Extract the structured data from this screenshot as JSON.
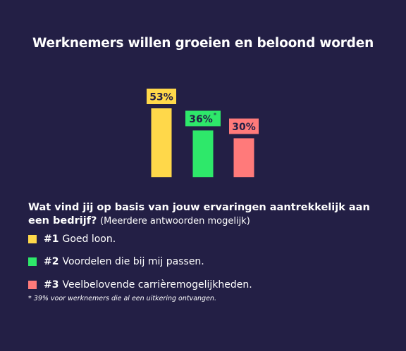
{
  "title": "Werknemers willen groeien en beloond worden",
  "chart_data": {
    "type": "bar",
    "categories": [
      "#1",
      "#2",
      "#3"
    ],
    "values": [
      53,
      36,
      30
    ],
    "data_labels": [
      "53%",
      "36%",
      "30%"
    ],
    "label_markers": [
      "",
      "*",
      ""
    ],
    "colors": [
      "#ffd84a",
      "#2ee86a",
      "#ff7a7a"
    ],
    "ylim": [
      0,
      53
    ],
    "grid": false
  },
  "question": {
    "bold": "Wat vind jij op basis van jouw ervaringen aantrekkelijk aan een bedrijf?",
    "normal": "(Meerdere antwoorden mogelijk)"
  },
  "legend": [
    {
      "rank": "#1",
      "label": "Goed loon.",
      "color": "#ffd84a"
    },
    {
      "rank": "#2",
      "label": "Voordelen die bij mij passen.",
      "color": "#2ee86a"
    },
    {
      "rank": "#3",
      "label": "Veelbelovende carrièremogelijkheden.",
      "color": "#ff7a7a"
    }
  ],
  "footnote": "* 39% voor werknemers die al een uitkering ontvangen.",
  "colors": {
    "background": "#231f45",
    "text": "#ffffff",
    "label_text": "#231f45"
  }
}
